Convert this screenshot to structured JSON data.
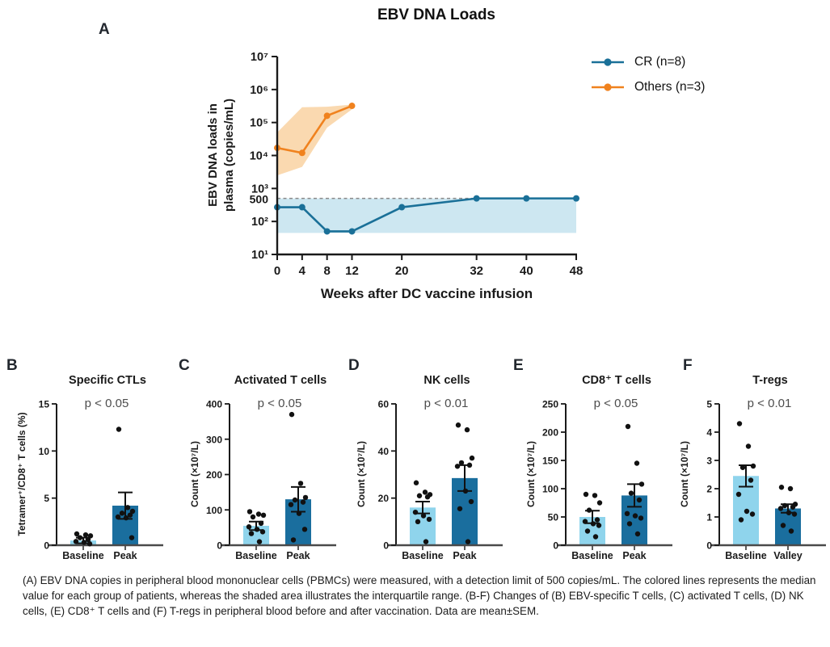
{
  "figure": {
    "panel_labels": {
      "a": "A",
      "b": "B",
      "c": "C",
      "d": "D",
      "e": "E",
      "f": "F"
    },
    "caption": "(A) EBV DNA copies in peripheral blood mononuclear cells (PBMCs) were measured, with a detection limit of 500 copies/mL. The colored lines represents the median value for each group of patients, whereas the shaded area illustrates the interquartile range. (B-F) Changes of (B) EBV-specific T cells, (C) activated T cells, (D) NK cells, (E) CD8⁺ T cells and (F) T-regs in peripheral blood before and after vaccination. Data are mean±SEM."
  },
  "colors": {
    "cr_blue": "#1A7098",
    "others_orange": "#F0821E",
    "blue_band": "#CDE7F1",
    "orange_band": "#FAD9B0",
    "baseline_bar": "#8FD4EC",
    "peak_bar": "#1A6E9E",
    "detection_line": "#8A8A8A",
    "pvalue_text": "#4D4D4D",
    "axis": "#1A1A1A"
  },
  "legend": {
    "position": "right-top",
    "items": [
      {
        "label": "CR (n=8)",
        "color": "#1A7098"
      },
      {
        "label": "Others (n=3)",
        "color": "#F0821E"
      }
    ]
  },
  "chart_data": [
    {
      "panel": "A",
      "type": "line",
      "title": "EBV DNA Loads",
      "xlabel": "Weeks after DC vaccine infusion",
      "ylabel_lines": [
        "EBV DNA loads in",
        "plasma (copies/mL)"
      ],
      "yscale": "log",
      "ylim": [
        10,
        10000000
      ],
      "yticks": [
        {
          "value": 10,
          "label": "10¹"
        },
        {
          "value": 100,
          "label": "10²"
        },
        {
          "value": 1000,
          "label": "10³"
        },
        {
          "value": 10000,
          "label": "10⁴"
        },
        {
          "value": 100000,
          "label": "10⁵"
        },
        {
          "value": 1000000,
          "label": "10⁶"
        },
        {
          "value": 10000000,
          "label": "10⁷"
        }
      ],
      "extra_ytick": {
        "value": 500,
        "label": "500"
      },
      "detection_limit": 500,
      "xticks": [
        0,
        4,
        8,
        12,
        20,
        32,
        40,
        48
      ],
      "grid": false,
      "series": [
        {
          "name": "CR (n=8)",
          "color_key": "cr_blue",
          "band_color_key": "blue_band",
          "x": [
            0,
            4,
            8,
            12,
            20,
            32,
            40,
            48
          ],
          "values": [
            270,
            270,
            50,
            50,
            270,
            500,
            500,
            500
          ],
          "band": {
            "x": [
              0,
              48
            ],
            "lower": [
              45,
              45
            ],
            "upper": [
              500,
              500
            ]
          }
        },
        {
          "name": "Others (n=3)",
          "color_key": "others_orange",
          "band_color_key": "orange_band",
          "x": [
            0,
            4,
            8,
            12
          ],
          "values": [
            17000,
            12000,
            160000,
            320000
          ],
          "band": {
            "x": [
              0,
              4,
              8,
              12
            ],
            "lower": [
              2500,
              4500,
              70000,
              250000
            ],
            "upper": [
              50000,
              290000,
              300000,
              350000
            ]
          }
        }
      ]
    },
    {
      "panel": "B",
      "type": "bar",
      "title": "Specific CTLs",
      "pvalue": "p < 0.05",
      "ylabel": "Tetramer⁺/CD8⁺ T cells (%)",
      "ylim": [
        0,
        15
      ],
      "yticks": [
        0,
        5,
        10,
        15
      ],
      "categories": [
        "Baseline",
        "Peak"
      ],
      "bars": [
        {
          "label": "Baseline",
          "mean": 0.5,
          "sem": 0.3,
          "dots": [
            1.2,
            1.1,
            1.0,
            0.8,
            0.6,
            0.4,
            0.3,
            0.15
          ]
        },
        {
          "label": "Peak",
          "mean": 4.2,
          "sem": 1.4,
          "dots": [
            12.3,
            4.0,
            3.6,
            3.4,
            3.2,
            3.0,
            2.9,
            0.8
          ]
        }
      ]
    },
    {
      "panel": "C",
      "type": "bar",
      "title": "Activated T cells",
      "pvalue": "p < 0.05",
      "ylabel": "Count (×10⁷/L)",
      "ylim": [
        0,
        400
      ],
      "yticks": [
        0,
        100,
        200,
        300,
        400
      ],
      "categories": [
        "Baseline",
        "Peak"
      ],
      "bars": [
        {
          "label": "Baseline",
          "mean": 55,
          "sem": 12,
          "dots": [
            95,
            88,
            85,
            80,
            62,
            52,
            45,
            38,
            33,
            10
          ]
        },
        {
          "label": "Peak",
          "mean": 130,
          "sem": 35,
          "dots": [
            370,
            175,
            135,
            128,
            122,
            115,
            90,
            45,
            15
          ]
        }
      ]
    },
    {
      "panel": "D",
      "type": "bar",
      "title": "NK cells",
      "pvalue": "p < 0.01",
      "ylabel": "Count (×10⁷/L)",
      "ylim": [
        0,
        60
      ],
      "yticks": [
        0,
        20,
        40,
        60
      ],
      "categories": [
        "Baseline",
        "Peak"
      ],
      "bars": [
        {
          "label": "Baseline",
          "mean": 16,
          "sem": 2.5,
          "dots": [
            26.5,
            22.5,
            21.5,
            21,
            20.5,
            14,
            12.5,
            11,
            10,
            1.5
          ]
        },
        {
          "label": "Peak",
          "mean": 28.5,
          "sem": 5.5,
          "dots": [
            51,
            49,
            37,
            35,
            34,
            33.5,
            23,
            18.5,
            15.5,
            1.5
          ]
        }
      ]
    },
    {
      "panel": "E",
      "type": "bar",
      "title": "CD8⁺ T cells",
      "pvalue": "p < 0.05",
      "ylabel": "Count (×10⁷/L)",
      "ylim": [
        0,
        250
      ],
      "yticks": [
        0,
        50,
        100,
        150,
        200,
        250
      ],
      "categories": [
        "Baseline",
        "Peak"
      ],
      "bars": [
        {
          "label": "Baseline",
          "mean": 50,
          "sem": 11,
          "dots": [
            90,
            88,
            75,
            62,
            45,
            42,
            38,
            35,
            25,
            15
          ]
        },
        {
          "label": "Peak",
          "mean": 88,
          "sem": 20,
          "dots": [
            210,
            145,
            108,
            92,
            80,
            56,
            52,
            48,
            38,
            20
          ]
        }
      ]
    },
    {
      "panel": "F",
      "type": "bar",
      "title": "T-regs",
      "pvalue": "p < 0.01",
      "ylabel": "Count (×10⁷/L)",
      "ylim": [
        0,
        5
      ],
      "yticks": [
        0,
        1,
        2,
        3,
        4,
        5
      ],
      "categories": [
        "Baseline",
        "Valley"
      ],
      "bars": [
        {
          "label": "Baseline",
          "mean": 2.45,
          "sem": 0.38,
          "dots": [
            4.3,
            3.5,
            2.8,
            2.75,
            2.3,
            1.8,
            1.2,
            1.1,
            0.9
          ]
        },
        {
          "label": "Valley",
          "mean": 1.3,
          "sem": 0.15,
          "dots": [
            2.05,
            2.0,
            1.45,
            1.4,
            1.35,
            1.3,
            1.15,
            1.1,
            0.7,
            0.5
          ]
        }
      ]
    }
  ]
}
